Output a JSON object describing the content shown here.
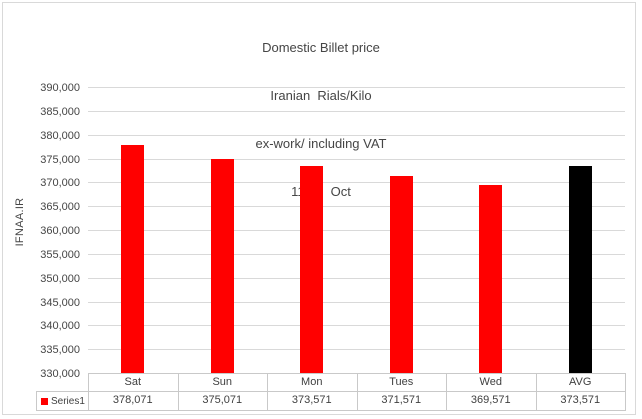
{
  "chart_data": {
    "type": "bar",
    "title_lines": [
      "Domestic Billet price",
      "Iranian  Rials/Kilo",
      "ex-work/ including VAT",
      "11-15  Oct"
    ],
    "ylabel": "IFNAA.IR",
    "xlabel": "",
    "categories": [
      "Sat",
      "Sun",
      "Mon",
      "Tues",
      "Wed",
      "AVG"
    ],
    "series": [
      {
        "name": "Series1",
        "values": [
          378071,
          375071,
          373571,
          371571,
          369571,
          373571
        ]
      }
    ],
    "value_labels": [
      "378,071",
      "375,071",
      "373,571",
      "371,571",
      "369,571",
      "373,571"
    ],
    "bar_colors": [
      "#ff0000",
      "#ff0000",
      "#ff0000",
      "#ff0000",
      "#ff0000",
      "#000000"
    ],
    "ylim": [
      330000,
      390000
    ],
    "ytick_step": 5000,
    "ytick_labels": [
      "330,000",
      "335,000",
      "340,000",
      "345,000",
      "350,000",
      "355,000",
      "360,000",
      "365,000",
      "370,000",
      "375,000",
      "380,000",
      "385,000",
      "390,000"
    ],
    "grid": true,
    "legend": {
      "label": "Series1",
      "marker_color": "#ff0000",
      "position": "bottom-left-table"
    },
    "colors": {
      "bar_red": "#ff0000",
      "bar_black": "#000000",
      "gridline": "#d9d9d9",
      "table_border": "#c9c9c9",
      "text": "#404040"
    }
  }
}
